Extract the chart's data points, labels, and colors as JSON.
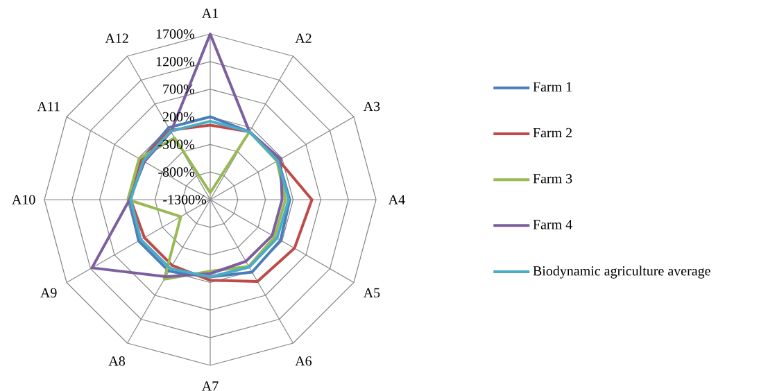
{
  "chart_data": {
    "type": "radar",
    "categories": [
      "A1",
      "A2",
      "A3",
      "A4",
      "A5",
      "A6",
      "A7",
      "A8",
      "A9",
      "A10",
      "A11",
      "A12"
    ],
    "ylim": [
      -1300,
      1700
    ],
    "yticks": [
      {
        "value": -1300,
        "label": "-1300%"
      },
      {
        "value": -800,
        "label": "-800%"
      },
      {
        "value": -300,
        "label": "-300%"
      },
      {
        "value": 200,
        "label": "200%"
      },
      {
        "value": 700,
        "label": "700%"
      },
      {
        "value": 1200,
        "label": "1200%"
      },
      {
        "value": 1700,
        "label": "1700%"
      }
    ],
    "grid": true,
    "legend": "right",
    "series": [
      {
        "name": "Farm 1",
        "color": "#4a7ebb",
        "values": [
          200,
          120,
          120,
          140,
          170,
          215,
          100,
          195,
          195,
          160,
          140,
          205
        ]
      },
      {
        "name": "Farm 2",
        "color": "#be4b48",
        "values": [
          50,
          120,
          130,
          540,
          460,
          410,
          160,
          75,
          75,
          140,
          140,
          150
        ]
      },
      {
        "name": "Farm 3",
        "color": "#98b954",
        "values": [
          -1175,
          120,
          95,
          60,
          45,
          95,
          -5,
          365,
          -685,
          190,
          185,
          -10
        ]
      },
      {
        "name": "Farm 4",
        "color": "#7d5fa0",
        "values": [
          1700,
          120,
          170,
          0,
          -5,
          -10,
          40,
          310,
          1170,
          160,
          75,
          120
        ]
      },
      {
        "name": "Biodynamic agriculture average",
        "color": "#4bacc6",
        "values": [
          120,
          120,
          110,
          120,
          95,
          110,
          100,
          140,
          150,
          140,
          100,
          130
        ]
      }
    ]
  }
}
